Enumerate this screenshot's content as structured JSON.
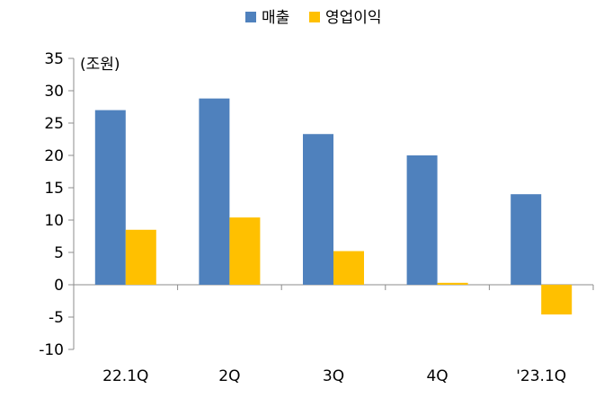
{
  "chart_data": {
    "type": "bar",
    "unit_label": "(조원)",
    "categories": [
      "22.1Q",
      "2Q",
      "3Q",
      "4Q",
      "'23.1Q"
    ],
    "series": [
      {
        "name": "매출",
        "color": "#4F81BD",
        "values": [
          27.0,
          28.8,
          23.3,
          20.0,
          14.0
        ]
      },
      {
        "name": "영업이익",
        "color": "#FFC000",
        "values": [
          8.5,
          10.4,
          5.2,
          0.3,
          -4.6
        ]
      }
    ],
    "ylim": [
      -10,
      35
    ],
    "yticks": [
      35,
      30,
      25,
      20,
      15,
      10,
      5,
      0,
      -5,
      -10
    ],
    "legend_position": "top-center",
    "grid": false
  }
}
